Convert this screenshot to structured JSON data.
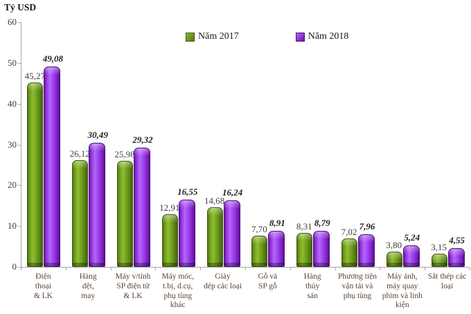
{
  "title": "Tỷ USD",
  "legend": {
    "items": [
      {
        "label": "Năm 2017",
        "color": "#79a821"
      },
      {
        "label": "Năm 2018",
        "color": "#9b3df0"
      }
    ]
  },
  "chart_data": {
    "type": "bar",
    "title": "",
    "ylabel": "Tỷ USD",
    "xlabel": "",
    "ylim": [
      0,
      60
    ],
    "yticks": [
      0,
      10,
      20,
      30,
      40,
      50,
      60
    ],
    "grid": false,
    "legend_position": "top",
    "axis_color": "#a6a6a6",
    "categories": [
      "Điện thoại & LK",
      "Hàng dệt, may",
      "Máy v/tính SP điện tử & LK",
      "Máy móc, t.bị, d.cụ, phụ tùng khác",
      "Giày dép các loại",
      "Gỗ và SP gỗ",
      "Hàng thủy sản",
      "Phương tiện vận tải và phụ tùng",
      "Máy ảnh, máy quay phim và linh kiện",
      "Sắt thép các loại"
    ],
    "category_lines": [
      [
        "Điện",
        "thoại",
        "& LK"
      ],
      [
        "Hàng",
        "dệt,",
        "may"
      ],
      [
        "Máy v/tính",
        "SP điện tử",
        "& LK"
      ],
      [
        "Máy móc,",
        "t.bị, d.cụ,",
        "phụ tùng",
        "khác"
      ],
      [
        "Giày",
        "dép các loại"
      ],
      [
        "Gỗ và",
        "SP gỗ"
      ],
      [
        "Hàng",
        "thủy",
        "sản"
      ],
      [
        "Phương tiện",
        "vận tải và",
        "phụ tùng"
      ],
      [
        "Máy ảnh,",
        "máy quay",
        "phim và linh",
        "kiện"
      ],
      [
        "Sắt thép các",
        "loại"
      ]
    ],
    "series": [
      {
        "name": "Năm 2017",
        "color": "#79a821",
        "values": [
          45.27,
          26.12,
          25.98,
          12.91,
          14.68,
          7.7,
          8.31,
          7.02,
          3.8,
          3.15
        ],
        "labels": [
          "45,27",
          "26,12",
          "25,98",
          "12,91",
          "14,68",
          "7,70",
          "8,31",
          "7,02",
          "3,80",
          "3,15"
        ]
      },
      {
        "name": "Năm 2018",
        "color": "#9b3df0",
        "values": [
          49.08,
          30.49,
          29.32,
          16.55,
          16.24,
          8.91,
          8.79,
          7.96,
          5.24,
          4.55
        ],
        "labels": [
          "49,08",
          "30,49",
          "29,32",
          "16,55",
          "16,24",
          "8,91",
          "8,79",
          "7,96",
          "5,24",
          "4,55"
        ]
      }
    ]
  }
}
